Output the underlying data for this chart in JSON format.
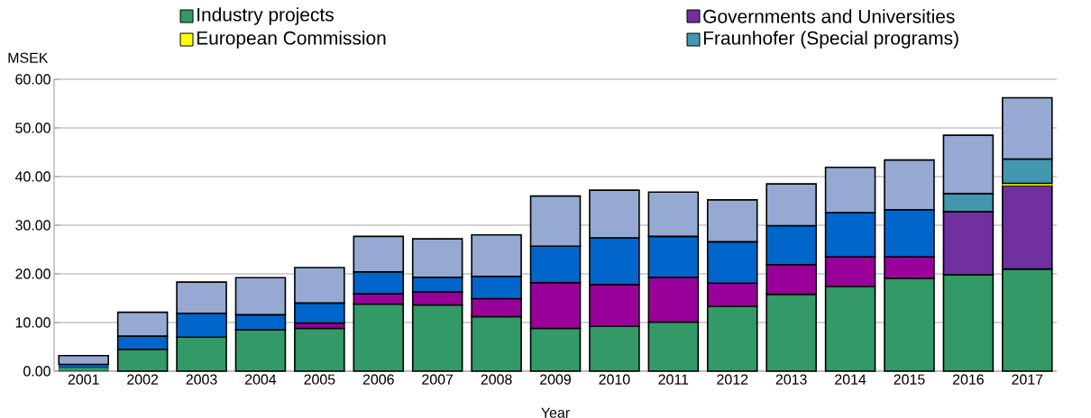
{
  "chart_data": {
    "type": "bar",
    "stacked": true,
    "xlabel": "Year",
    "ylabel": "MSEK",
    "categories": [
      "2001",
      "2002",
      "2003",
      "2004",
      "2005",
      "2006",
      "2007",
      "2008",
      "2009",
      "2010",
      "2011",
      "2012",
      "2013",
      "2014",
      "2015",
      "2016",
      "2017"
    ],
    "series": [
      {
        "name": "Industry projects",
        "color": "#339966",
        "values": [
          0.8,
          4.5,
          7.0,
          8.5,
          8.8,
          13.8,
          13.6,
          11.2,
          8.8,
          9.2,
          10.1,
          13.3,
          15.8,
          17.4,
          19.1,
          19.8,
          21.0
        ]
      },
      {
        "color": "#990099",
        "values": [
          null,
          null,
          null,
          null,
          1.1,
          2.1,
          2.7,
          3.7,
          9.4,
          8.6,
          9.2,
          4.8,
          6.1,
          6.1,
          4.4,
          null,
          null
        ]
      },
      {
        "name": "Governments and Universities",
        "color": "#7030a0",
        "values": [
          null,
          null,
          null,
          null,
          null,
          null,
          null,
          null,
          null,
          null,
          null,
          null,
          null,
          null,
          null,
          13.0,
          17.1
        ]
      },
      {
        "name": "European Commission",
        "color": "#ffff00",
        "values": [
          null,
          null,
          null,
          null,
          null,
          null,
          null,
          null,
          null,
          null,
          null,
          null,
          null,
          null,
          null,
          null,
          0.5
        ]
      },
      {
        "name": "Fraunhofer (Special programs)",
        "color": "#4198af",
        "values": [
          null,
          null,
          null,
          null,
          null,
          null,
          null,
          null,
          null,
          null,
          null,
          null,
          null,
          null,
          null,
          3.7,
          5.0
        ]
      },
      {
        "color": "#0066cc",
        "values": [
          0.6,
          2.7,
          4.9,
          3.1,
          4.1,
          4.5,
          3.0,
          4.6,
          7.5,
          9.6,
          8.4,
          8.5,
          8.0,
          9.1,
          9.7,
          null,
          null
        ]
      },
      {
        "color": "#95a9d3",
        "values": [
          1.8,
          4.9,
          6.4,
          7.6,
          7.3,
          7.3,
          7.9,
          8.5,
          10.3,
          9.8,
          9.1,
          8.6,
          8.6,
          9.3,
          10.2,
          12.0,
          12.6
        ]
      }
    ],
    "ylim": [
      0,
      60
    ],
    "yticks": [
      {
        "value": 0,
        "label": "0.00"
      },
      {
        "value": 10,
        "label": "10.00"
      },
      {
        "value": 20,
        "label": "20.00"
      },
      {
        "value": 30,
        "label": "30.00"
      },
      {
        "value": 40,
        "label": "40.00"
      },
      {
        "value": 50,
        "label": "50.00"
      },
      {
        "value": 60,
        "label": "60.00"
      }
    ],
    "grid": "y",
    "legend": "top"
  }
}
